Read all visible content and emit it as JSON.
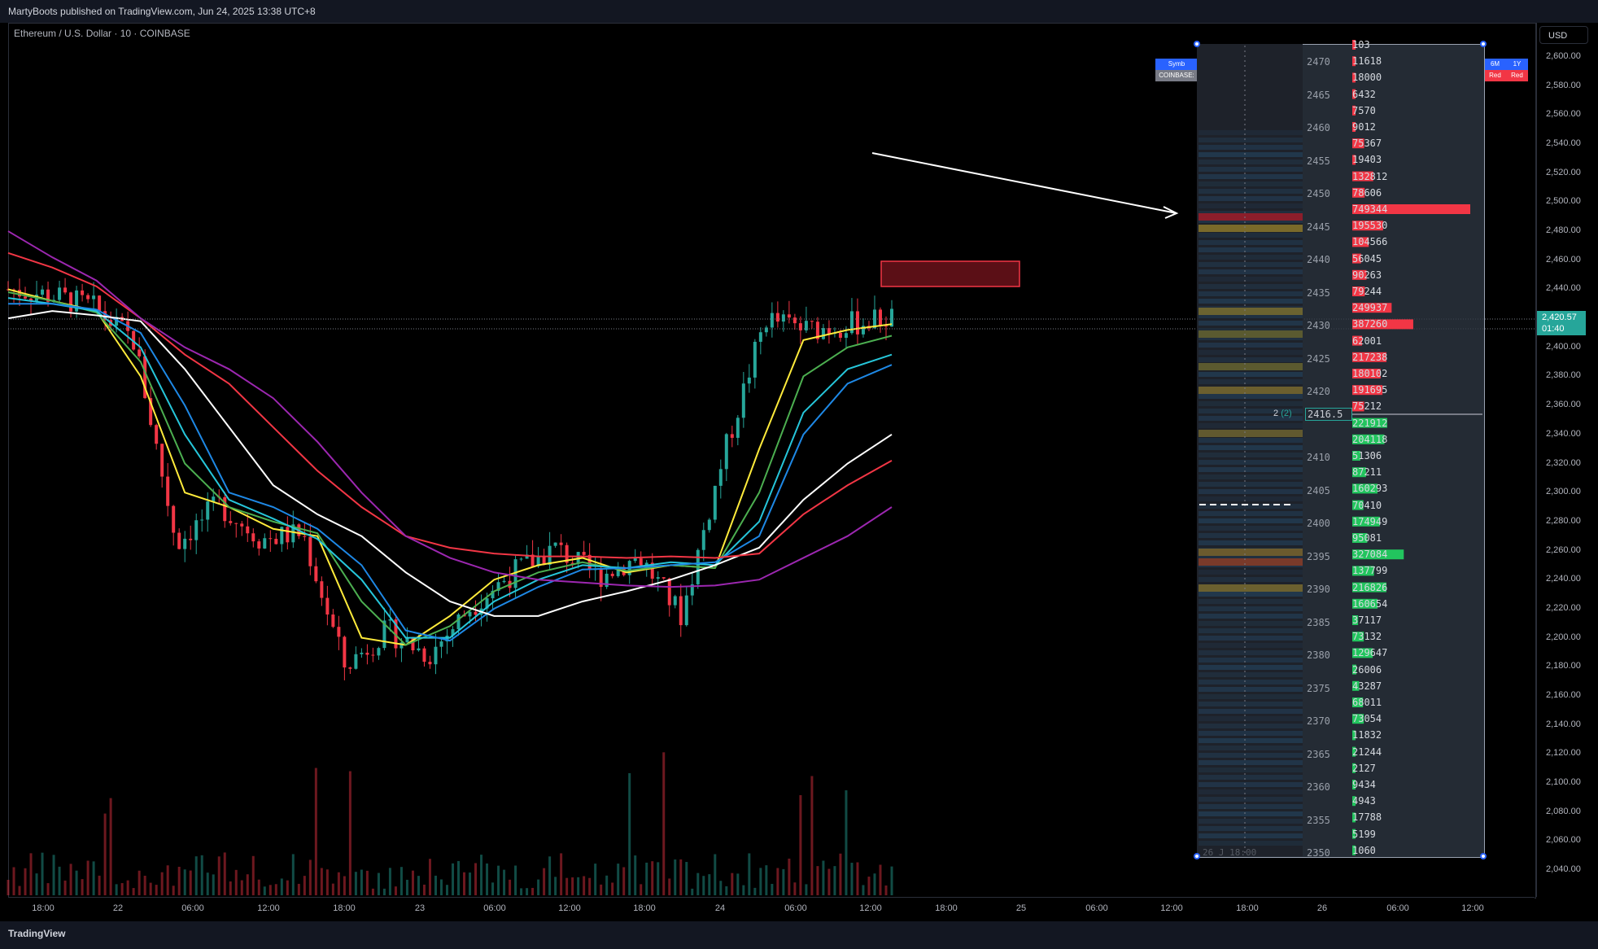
{
  "header": {
    "published": "MartyBoots published on TradingView.com, Jun 24, 2025 13:38 UTC+8"
  },
  "symbol": {
    "title": "Ethereum / U.S. Dollar · 10 · COINBASE"
  },
  "price_axis": {
    "currency": "USD",
    "ticks": [
      "2,600.00",
      "2,580.00",
      "2,560.00",
      "2,540.00",
      "2,520.00",
      "2,500.00",
      "2,480.00",
      "2,460.00",
      "2,440.00",
      "2,420.00",
      "2,400.00",
      "2,380.00",
      "2,360.00",
      "2,340.00",
      "2,320.00",
      "2,300.00",
      "2,280.00",
      "2,260.00",
      "2,240.00",
      "2,220.00",
      "2,200.00",
      "2,180.00",
      "2,160.00",
      "2,140.00",
      "2,120.00",
      "2,100.00",
      "2,080.00",
      "2,060.00",
      "2,040.00"
    ],
    "last_price": "2,420.57",
    "countdown": "01:40"
  },
  "time_axis": {
    "ticks": [
      "18:00",
      "22",
      "06:00",
      "12:00",
      "18:00",
      "23",
      "06:00",
      "12:00",
      "18:00",
      "24",
      "06:00",
      "12:00",
      "18:00",
      "25",
      "06:00",
      "12:00",
      "18:00",
      "26",
      "06:00",
      "12:00"
    ]
  },
  "footer": {
    "logo": "TradingView"
  },
  "overlay_table": {
    "left_top": "Symb",
    "left_bottom": "COINBASE:",
    "right_top": [
      "6M",
      "1Y"
    ],
    "right_bottom": [
      "Red",
      "Red"
    ]
  },
  "ladder": {
    "prices": [
      "2470",
      "2465",
      "2460",
      "2455",
      "2450",
      "2445",
      "2440",
      "2435",
      "2430",
      "2425",
      "2420",
      "2410",
      "2405",
      "2400",
      "2395",
      "2390",
      "2385",
      "2380",
      "2375",
      "2370",
      "2365",
      "2360",
      "2355",
      "2350"
    ],
    "volumes": [
      "103",
      "11618",
      "18000",
      "6432",
      "7570",
      "9012",
      "75367",
      "19403",
      "132812",
      "78606",
      "749344",
      "195530",
      "104566",
      "56045",
      "90263",
      "79244",
      "249937",
      "387260",
      "62001",
      "217238",
      "180102",
      "191695",
      "75212",
      "221912",
      "204118",
      "51306",
      "87211",
      "160293",
      "70410",
      "174949",
      "95081",
      "327084",
      "137799",
      "216826",
      "160654",
      "37117",
      "73132",
      "129647",
      "26006",
      "43287",
      "68011",
      "73054",
      "11832",
      "21244",
      "2127",
      "9434",
      "4943",
      "17788",
      "5199",
      "1060"
    ],
    "current_price": "2416.5",
    "current_count": "2",
    "current_count_paren": "(2)",
    "bottom_partial": "26 J    18:00"
  },
  "chart_data": {
    "type": "candlestick",
    "title": "Ethereum / U.S. Dollar · 10 · COINBASE",
    "ylim": [
      2030,
      2610
    ],
    "x": [
      "21 15:00",
      "21 18:00",
      "22 00:00",
      "22 06:00",
      "22 12:00",
      "22 18:00",
      "23 00:00",
      "23 06:00",
      "23 12:00",
      "23 18:00",
      "24 00:00",
      "24 06:00",
      "24 12:00",
      "24 13:30"
    ],
    "close_path": [
      2440,
      2436,
      2428,
      2404,
      2265,
      2292,
      2268,
      2272,
      2180,
      2205,
      2188,
      2222,
      2245,
      2262,
      2242,
      2256,
      2215,
      2325,
      2420,
      2412,
      2416,
      2420.57
    ],
    "ema_series": [
      {
        "color": "#ffeb3b",
        "values": [
          2440,
          2432,
          2425,
          2380,
          2300,
          2290,
          2275,
          2270,
          2200,
          2195,
          2215,
          2240,
          2250,
          2255,
          2245,
          2250,
          2248,
          2330,
          2405,
          2412,
          2416
        ]
      },
      {
        "color": "#4caf50",
        "values": [
          2438,
          2432,
          2424,
          2390,
          2320,
          2290,
          2280,
          2272,
          2225,
          2195,
          2208,
          2232,
          2245,
          2252,
          2246,
          2250,
          2248,
          2300,
          2380,
          2400,
          2408
        ]
      },
      {
        "color": "#26c6da",
        "values": [
          2434,
          2430,
          2425,
          2400,
          2340,
          2295,
          2282,
          2268,
          2240,
          2200,
          2200,
          2225,
          2240,
          2250,
          2248,
          2252,
          2250,
          2280,
          2355,
          2385,
          2395
        ]
      },
      {
        "color": "#1e88e5",
        "values": [
          2430,
          2430,
          2426,
          2410,
          2360,
          2300,
          2290,
          2275,
          2250,
          2205,
          2198,
          2220,
          2235,
          2247,
          2248,
          2250,
          2252,
          2270,
          2340,
          2375,
          2388
        ]
      },
      {
        "color": "#ffffff",
        "values": [
          2420,
          2425,
          2422,
          2418,
          2385,
          2345,
          2305,
          2285,
          2270,
          2245,
          2225,
          2215,
          2215,
          2225,
          2232,
          2240,
          2250,
          2262,
          2295,
          2320,
          2340
        ]
      },
      {
        "color": "#f23645",
        "values": [
          2465,
          2455,
          2442,
          2420,
          2395,
          2375,
          2345,
          2315,
          2290,
          2270,
          2262,
          2258,
          2256,
          2256,
          2255,
          2256,
          2255,
          2258,
          2285,
          2305,
          2322
        ]
      },
      {
        "color": "#9c27b0",
        "values": [
          2480,
          2462,
          2446,
          2420,
          2400,
          2385,
          2365,
          2335,
          2300,
          2270,
          2255,
          2245,
          2240,
          2238,
          2236,
          2235,
          2236,
          2240,
          2255,
          2270,
          2290
        ]
      }
    ],
    "ladder_marker_price": 2416.5,
    "rectangle_price_range": [
      2443,
      2462
    ]
  }
}
